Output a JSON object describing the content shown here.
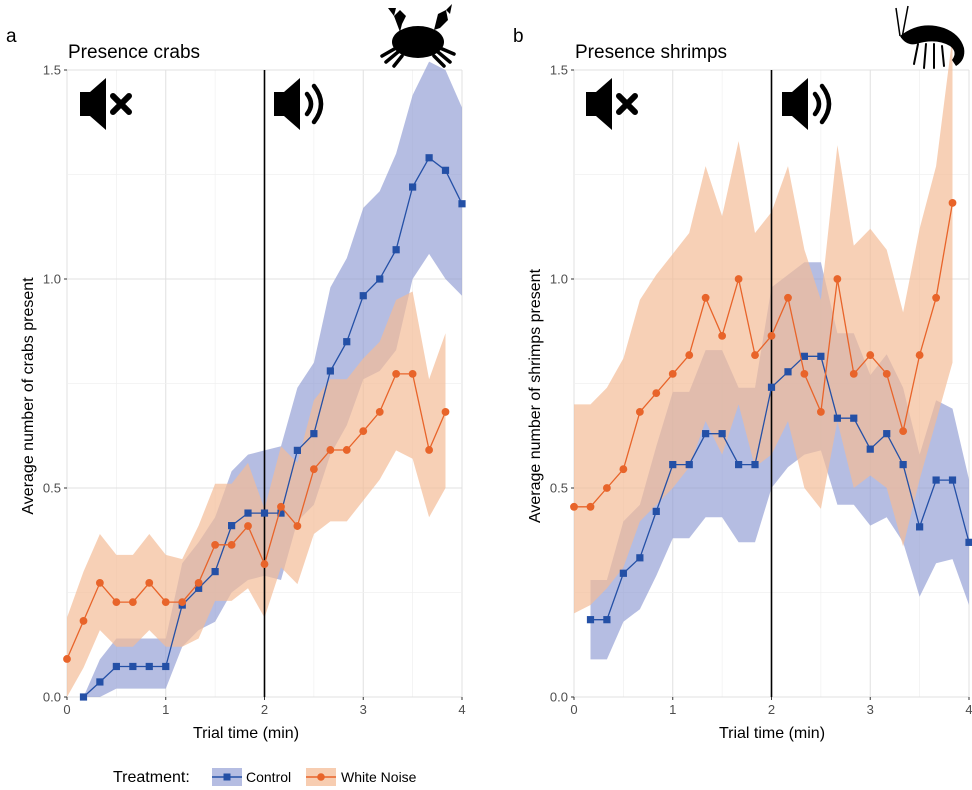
{
  "legend": {
    "title": "Treatment:",
    "items": [
      {
        "label": "Control",
        "color": "#2450a6",
        "fill": "#8e9ad2",
        "marker": "square"
      },
      {
        "label": "White Noise",
        "color": "#e8642a",
        "fill": "#f4bc97",
        "marker": "circle"
      }
    ]
  },
  "icons": [
    "speaker-muted-icon",
    "speaker-sound-icon",
    "crab-icon",
    "shrimp-icon"
  ],
  "chart_data": [
    {
      "panel": "a",
      "type": "line",
      "title": "Presence crabs",
      "xlabel": "Trial time (min)",
      "ylabel": "Average number of crabs present",
      "xlim": [
        0,
        4
      ],
      "ylim": [
        0,
        1.5
      ],
      "x_ticks": [
        0,
        1,
        2,
        3,
        4
      ],
      "y_ticks": [
        0.0,
        0.5,
        1.0,
        1.5
      ],
      "x_tick_labels": [
        "0",
        "1",
        "2",
        "3",
        "4"
      ],
      "y_tick_labels": [
        "0.0",
        "0.5",
        "1.0",
        "1.5"
      ],
      "vline": 2,
      "grid": true,
      "series": [
        {
          "name": "Control",
          "x": [
            0.167,
            0.333,
            0.5,
            0.667,
            0.833,
            1.0,
            1.167,
            1.333,
            1.5,
            1.667,
            1.833,
            2.0,
            2.167,
            2.333,
            2.5,
            2.667,
            2.833,
            3.0,
            3.167,
            3.333,
            3.5,
            3.667,
            3.833,
            4.0
          ],
          "y": [
            0.0,
            0.036,
            0.073,
            0.073,
            0.073,
            0.073,
            0.22,
            0.26,
            0.3,
            0.41,
            0.44,
            0.44,
            0.44,
            0.59,
            0.63,
            0.78,
            0.85,
            0.96,
            1.0,
            1.07,
            1.22,
            1.29,
            1.26,
            1.18
          ],
          "lower": [
            0.0,
            0.0,
            0.02,
            0.02,
            0.02,
            0.02,
            0.12,
            0.16,
            0.18,
            0.25,
            0.28,
            0.29,
            0.28,
            0.42,
            0.46,
            0.58,
            0.65,
            0.76,
            0.78,
            0.83,
            1.0,
            1.06,
            1.0,
            0.96
          ],
          "upper": [
            0.0,
            0.09,
            0.14,
            0.14,
            0.14,
            0.14,
            0.32,
            0.37,
            0.43,
            0.54,
            0.58,
            0.59,
            0.6,
            0.74,
            0.8,
            0.98,
            1.05,
            1.17,
            1.21,
            1.3,
            1.44,
            1.52,
            1.5,
            1.41
          ]
        },
        {
          "name": "White Noise",
          "x": [
            0.0,
            0.167,
            0.333,
            0.5,
            0.667,
            0.833,
            1.0,
            1.167,
            1.333,
            1.5,
            1.667,
            1.833,
            2.0,
            2.167,
            2.333,
            2.5,
            2.667,
            2.833,
            3.0,
            3.167,
            3.333,
            3.5,
            3.667,
            3.833
          ],
          "y": [
            0.091,
            0.182,
            0.273,
            0.227,
            0.227,
            0.273,
            0.227,
            0.227,
            0.273,
            0.364,
            0.364,
            0.409,
            0.318,
            0.455,
            0.409,
            0.545,
            0.591,
            0.591,
            0.636,
            0.682,
            0.773,
            0.773,
            0.591,
            0.682
          ],
          "lower": [
            0.0,
            0.07,
            0.16,
            0.12,
            0.12,
            0.16,
            0.12,
            0.12,
            0.14,
            0.23,
            0.23,
            0.26,
            0.19,
            0.31,
            0.27,
            0.39,
            0.42,
            0.42,
            0.47,
            0.52,
            0.59,
            0.57,
            0.43,
            0.5
          ],
          "upper": [
            0.19,
            0.3,
            0.39,
            0.34,
            0.34,
            0.39,
            0.34,
            0.33,
            0.41,
            0.51,
            0.51,
            0.56,
            0.45,
            0.6,
            0.56,
            0.71,
            0.76,
            0.76,
            0.81,
            0.85,
            0.95,
            0.97,
            0.76,
            0.87
          ]
        }
      ]
    },
    {
      "panel": "b",
      "type": "line",
      "title": "Presence shrimps",
      "xlabel": "Trial time (min)",
      "ylabel": "Average number of shrimps present",
      "xlim": [
        0,
        4
      ],
      "ylim": [
        0,
        1.5
      ],
      "x_ticks": [
        0,
        1,
        2,
        3,
        4
      ],
      "y_ticks": [
        0.0,
        0.5,
        1.0,
        1.5
      ],
      "x_tick_labels": [
        "0",
        "1",
        "2",
        "3",
        "4"
      ],
      "y_tick_labels": [
        "0.0",
        "0.5",
        "1.0",
        "1.5"
      ],
      "vline": 2,
      "grid": true,
      "series": [
        {
          "name": "Control",
          "x": [
            0.167,
            0.333,
            0.5,
            0.667,
            0.833,
            1.0,
            1.167,
            1.333,
            1.5,
            1.667,
            1.833,
            2.0,
            2.167,
            2.333,
            2.5,
            2.667,
            2.833,
            3.0,
            3.167,
            3.333,
            3.5,
            3.667,
            3.833,
            4.0
          ],
          "y": [
            0.185,
            0.185,
            0.296,
            0.333,
            0.444,
            0.556,
            0.556,
            0.63,
            0.63,
            0.556,
            0.556,
            0.741,
            0.778,
            0.815,
            0.815,
            0.667,
            0.667,
            0.593,
            0.63,
            0.556,
            0.407,
            0.519,
            0.519,
            0.37
          ],
          "lower": [
            0.09,
            0.09,
            0.18,
            0.21,
            0.29,
            0.38,
            0.38,
            0.43,
            0.43,
            0.37,
            0.37,
            0.5,
            0.55,
            0.58,
            0.59,
            0.46,
            0.46,
            0.41,
            0.43,
            0.37,
            0.24,
            0.32,
            0.33,
            0.22
          ],
          "upper": [
            0.28,
            0.28,
            0.42,
            0.46,
            0.6,
            0.73,
            0.73,
            0.83,
            0.83,
            0.74,
            0.74,
            0.98,
            1.01,
            1.04,
            1.04,
            0.87,
            0.87,
            0.77,
            0.82,
            0.74,
            0.58,
            0.71,
            0.69,
            0.52
          ]
        },
        {
          "name": "White Noise",
          "x": [
            0.0,
            0.167,
            0.333,
            0.5,
            0.667,
            0.833,
            1.0,
            1.167,
            1.333,
            1.5,
            1.667,
            1.833,
            2.0,
            2.167,
            2.333,
            2.5,
            2.667,
            2.833,
            3.0,
            3.167,
            3.333,
            3.5,
            3.667,
            3.833
          ],
          "y": [
            0.455,
            0.455,
            0.5,
            0.545,
            0.682,
            0.727,
            0.773,
            0.818,
            0.955,
            0.864,
            1.0,
            0.818,
            0.864,
            0.955,
            0.773,
            0.682,
            1.0,
            0.773,
            0.818,
            0.773,
            0.636,
            0.818,
            0.955,
            1.182
          ],
          "lower": [
            0.2,
            0.22,
            0.26,
            0.31,
            0.42,
            0.46,
            0.5,
            0.55,
            0.66,
            0.58,
            0.7,
            0.55,
            0.58,
            0.66,
            0.5,
            0.45,
            0.66,
            0.5,
            0.53,
            0.5,
            0.36,
            0.52,
            0.66,
            0.8
          ],
          "upper": [
            0.7,
            0.7,
            0.74,
            0.81,
            0.95,
            1.01,
            1.06,
            1.11,
            1.27,
            1.15,
            1.33,
            1.11,
            1.16,
            1.27,
            1.07,
            0.95,
            1.32,
            1.08,
            1.12,
            1.07,
            0.92,
            1.12,
            1.27,
            1.58
          ]
        }
      ]
    }
  ]
}
